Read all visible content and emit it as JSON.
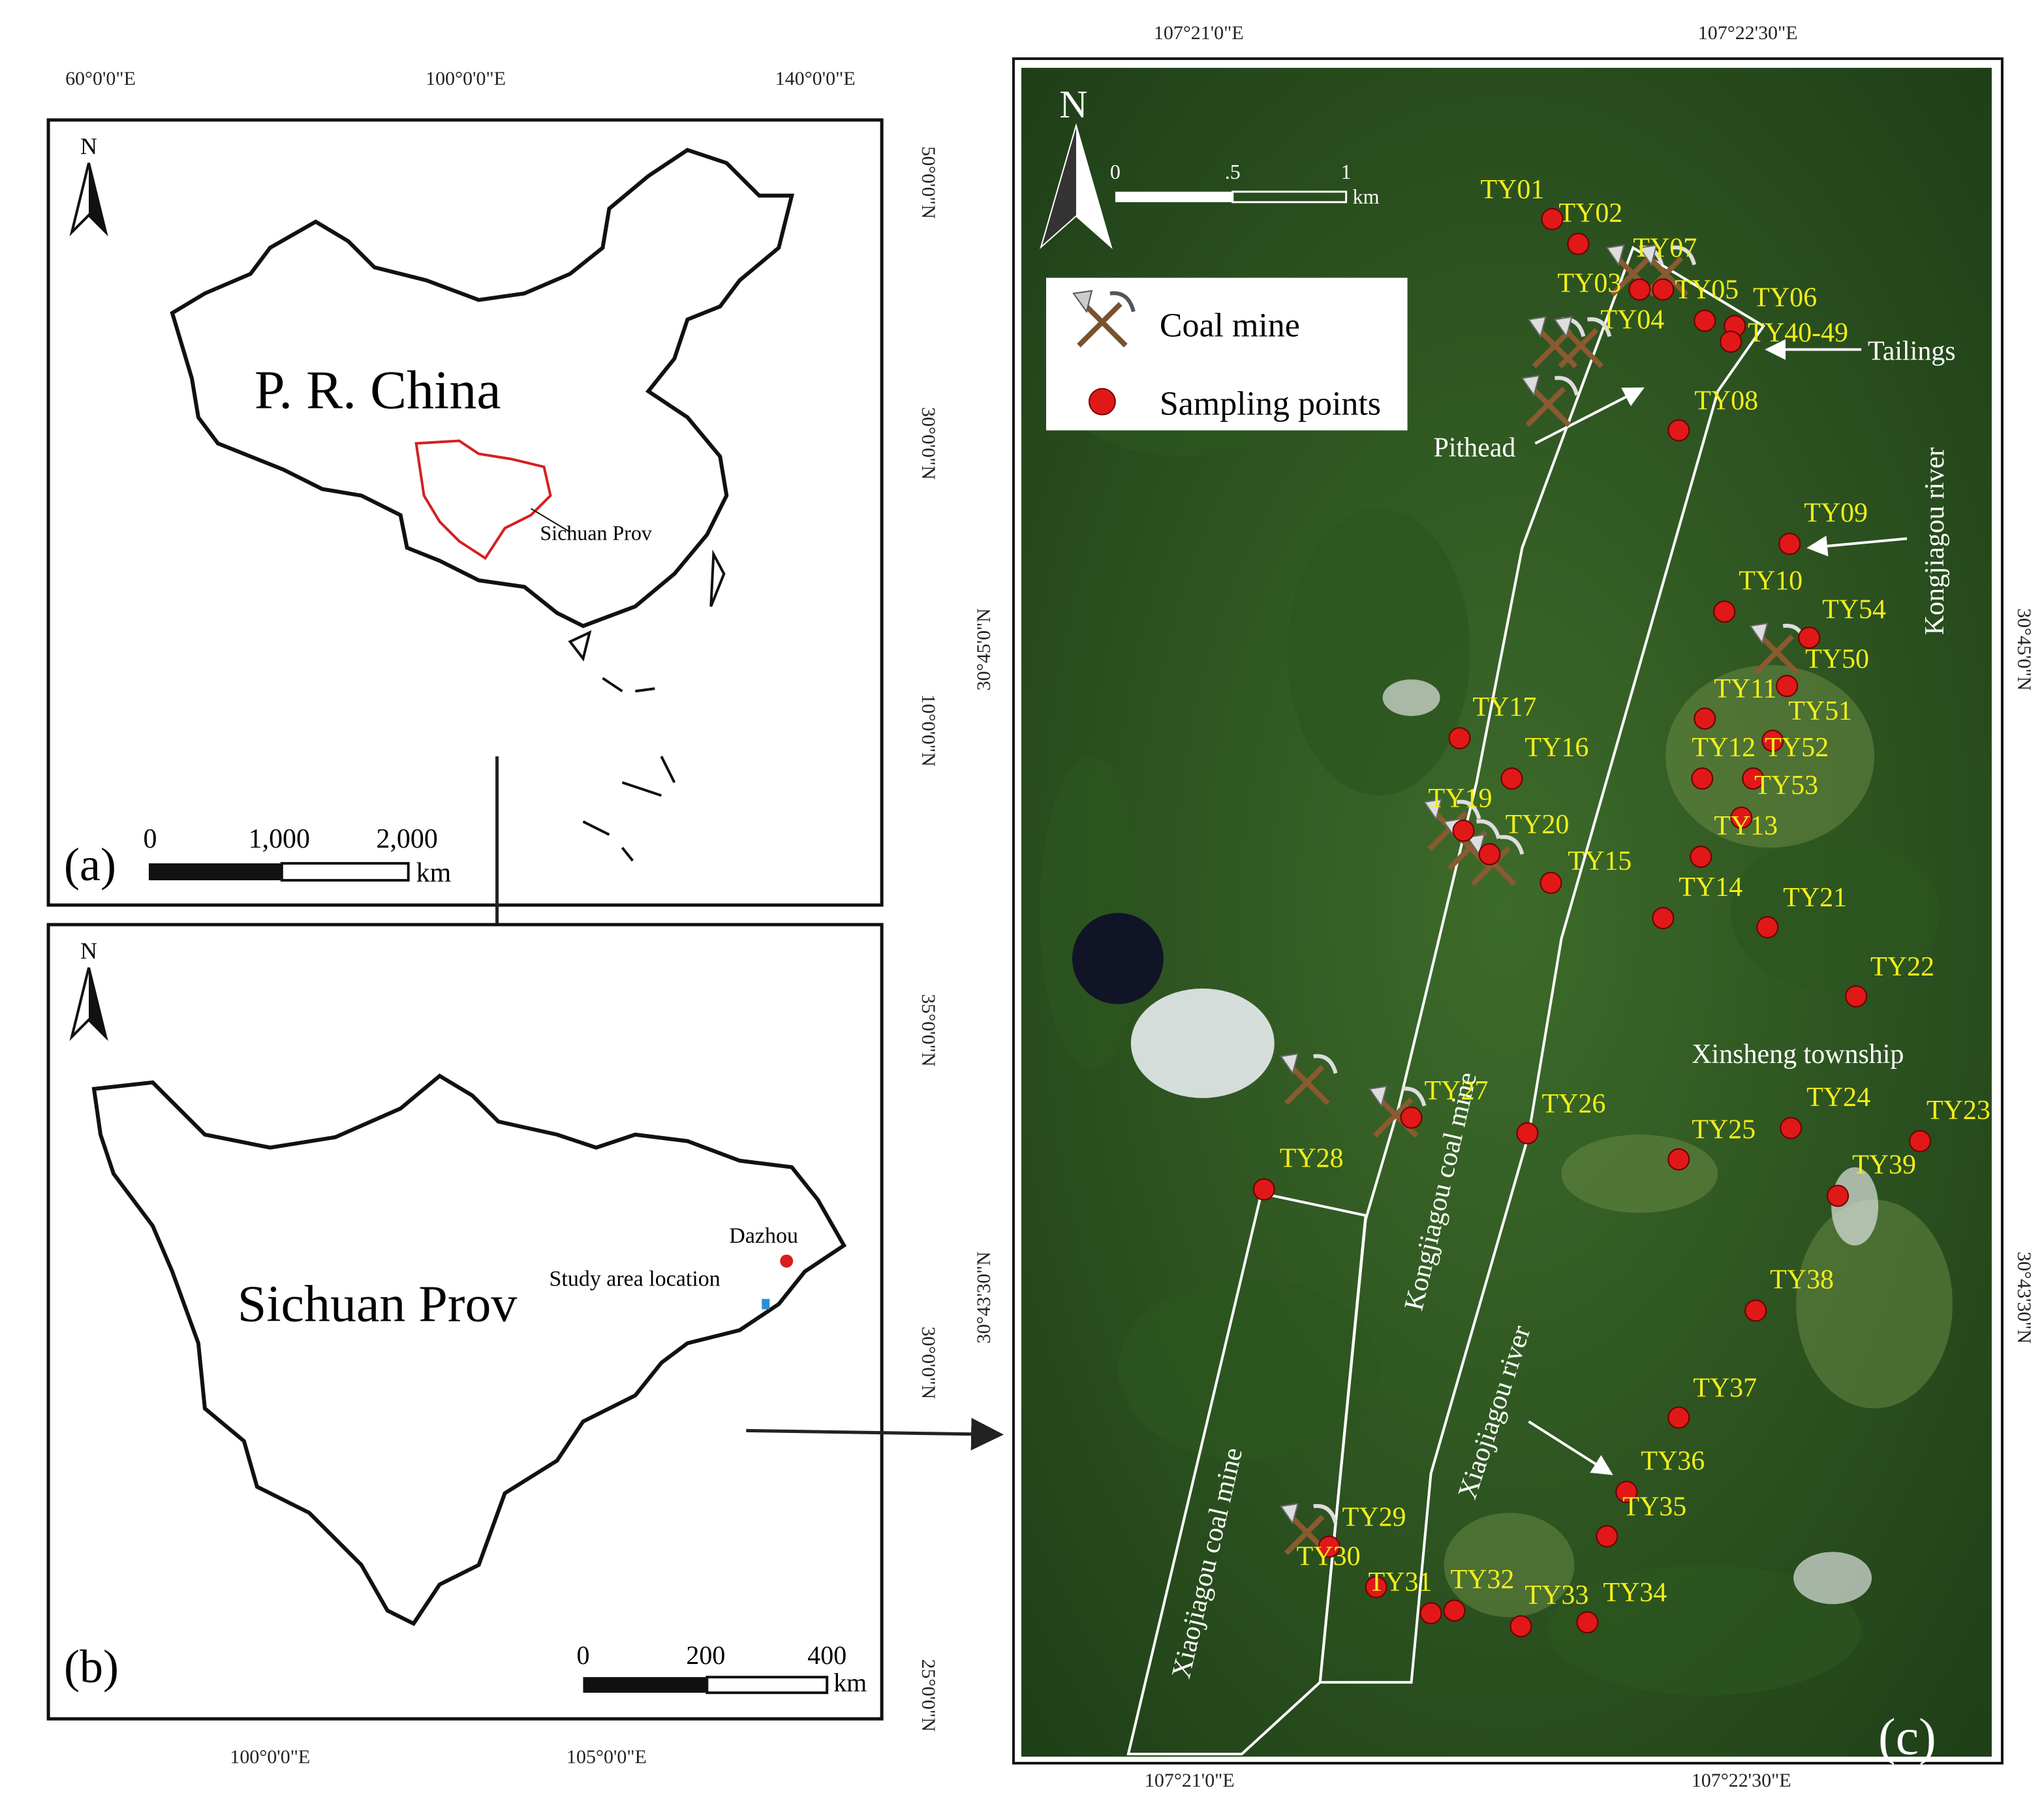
{
  "panel_a": {
    "lon_labels": [
      "60°0'0\"E",
      "100°0'0\"E",
      "140°0'0\"E"
    ],
    "lat_labels": [
      "50°0'0\"N",
      "30°0'0\"N",
      "10°0'0\"N"
    ],
    "north": "N",
    "country": "P. R. China",
    "province": "Sichuan Prov",
    "scale_labels": [
      "0",
      "1,000",
      "2,000"
    ],
    "scale_unit": "km",
    "panel_label": "(a)"
  },
  "panel_b": {
    "lon_labels": [
      "100°0'0\"E",
      "105°0'0\"E"
    ],
    "lat_labels": [
      "35°0'0\"N",
      "30°0'0\"N",
      "25°0'0\"N"
    ],
    "north": "N",
    "province": "Sichuan Prov",
    "city": "Dazhou",
    "study_area": "Study area location",
    "scale_labels": [
      "0",
      "200",
      "400"
    ],
    "scale_unit": "km",
    "panel_label": "(b)"
  },
  "panel_c": {
    "lon_labels_top": [
      "107°21'0\"E",
      "107°22'30\"E"
    ],
    "lon_labels_bottom": [
      "107°21'0\"E",
      "107°22'30\"E"
    ],
    "lat_labels_left": [
      "30°45'0\"N",
      "30°43'30\"N"
    ],
    "lat_labels_right": [
      "30°45'0\"N",
      "30°43'30\"N"
    ],
    "north": "N",
    "scale_labels": [
      "0",
      ".5",
      "1"
    ],
    "scale_unit": "km",
    "legend": [
      "Coal mine",
      "Sampling points"
    ],
    "annotations": [
      "Pithead",
      "Tailings",
      "Kongjiagou river",
      "Xinsheng township",
      "Kongjiagou coal mine",
      "Xiaojiagou coal mine",
      "Xiaojiagou river"
    ],
    "sample_labels": [
      "TY01",
      "TY02",
      "TY07",
      "TY03",
      "TY05",
      "TY06",
      "TY04",
      "TY40-49",
      "TY08",
      "TY09",
      "TY10",
      "TY54",
      "TY50",
      "TY11",
      "TY51",
      "TY12",
      "TY52",
      "TY53",
      "TY13",
      "TY17",
      "TY16",
      "TY19",
      "TY20",
      "TY15",
      "TY14",
      "TY21",
      "TY22",
      "TY27",
      "TY26",
      "TY24",
      "TY23",
      "TY25",
      "TY39",
      "TY28",
      "TY38",
      "TY37",
      "TY36",
      "TY35",
      "TY29",
      "TY30",
      "TY31",
      "TY32",
      "TY33",
      "TY34"
    ],
    "panel_label": "(c)"
  }
}
